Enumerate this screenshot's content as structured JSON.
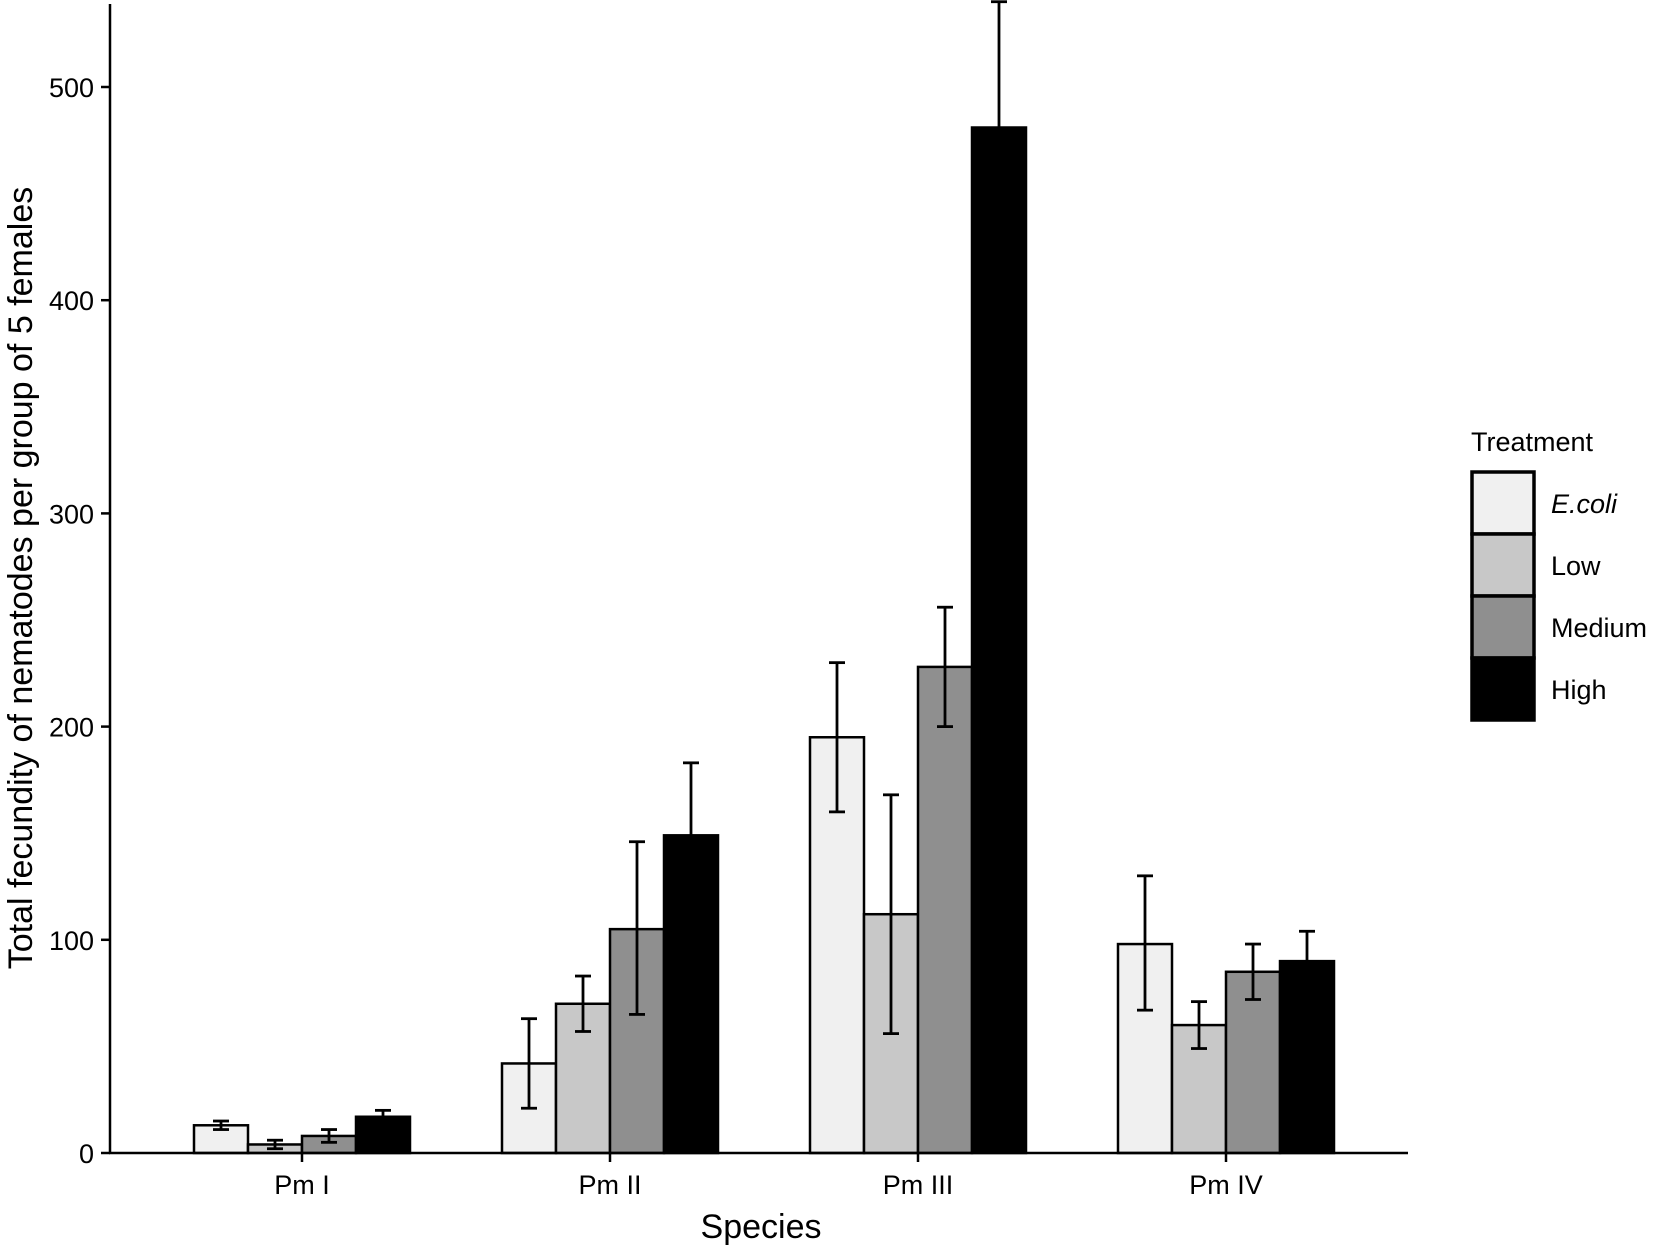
{
  "chart_data": {
    "type": "bar",
    "xlabel": "Species",
    "ylabel": "Total fecundity of nematodes per group of 5 females",
    "ylim": [
      0,
      540
    ],
    "yticks": [
      0,
      100,
      200,
      300,
      400,
      500
    ],
    "grid": false,
    "categories": [
      "Pm I",
      "Pm II",
      "Pm III",
      "Pm IV"
    ],
    "legend": {
      "title": "Treatment",
      "placement": "right"
    },
    "series": [
      {
        "name": "E.coli",
        "italic": true,
        "color": "#f0f0f0",
        "values": [
          13,
          42,
          195,
          98
        ],
        "error_low": [
          11,
          21,
          160,
          67
        ],
        "error_high": [
          15,
          63,
          230,
          130
        ]
      },
      {
        "name": "Low",
        "italic": false,
        "color": "#c8c8c8",
        "values": [
          4,
          70,
          112,
          60
        ],
        "error_low": [
          2,
          57,
          56,
          49
        ],
        "error_high": [
          6,
          83,
          168,
          71
        ]
      },
      {
        "name": "Medium",
        "italic": false,
        "color": "#8f8f8f",
        "values": [
          8,
          105,
          228,
          85
        ],
        "error_low": [
          5,
          65,
          200,
          72
        ],
        "error_high": [
          11,
          146,
          256,
          98
        ]
      },
      {
        "name": "High",
        "italic": false,
        "color": "#000000",
        "values": [
          17,
          149,
          481,
          90
        ],
        "error_low": [
          14,
          116,
          421,
          77
        ],
        "error_high": [
          20,
          183,
          540,
          104
        ]
      }
    ]
  }
}
